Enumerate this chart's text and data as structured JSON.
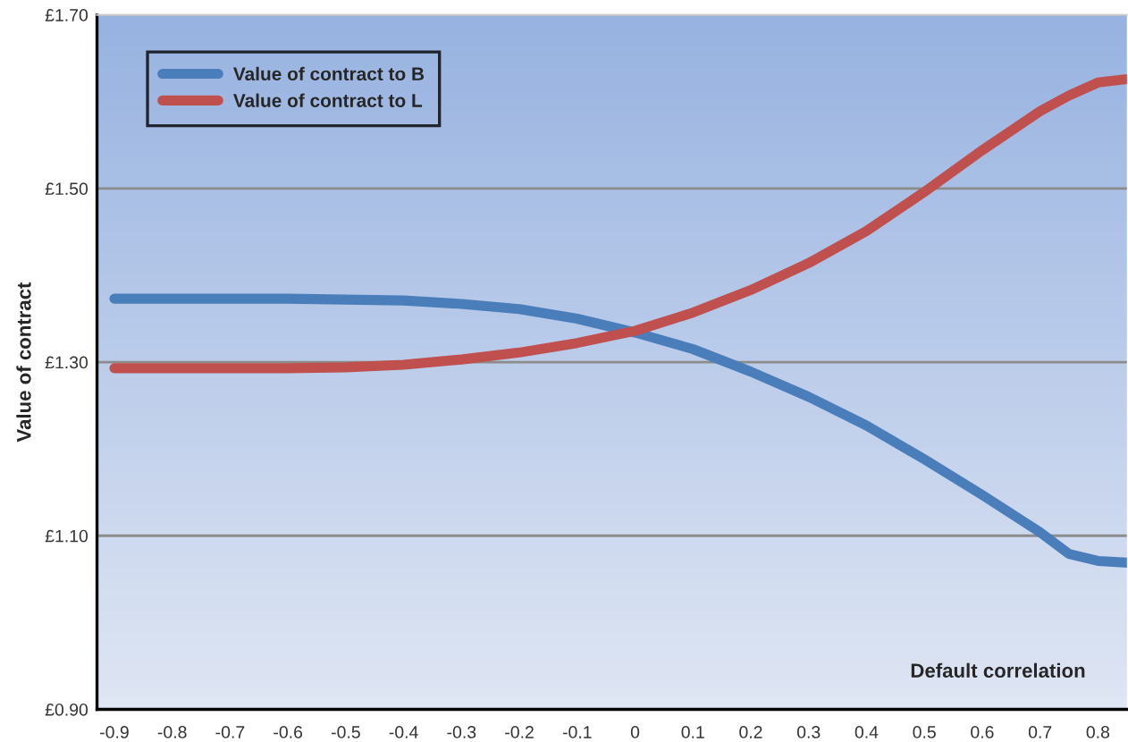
{
  "chart_data": {
    "type": "line",
    "ylabel": "Value of contract",
    "xlabel": "Default correlation",
    "x": [
      -0.9,
      -0.8,
      -0.7,
      -0.6,
      -0.5,
      -0.4,
      -0.3,
      -0.2,
      -0.1,
      0,
      0.1,
      0.2,
      0.3,
      0.4,
      0.5,
      0.6,
      0.7,
      0.75,
      0.8,
      0.85
    ],
    "series": [
      {
        "name": "Value of contract to B",
        "color": "#4a7ebb",
        "values": [
          1.373,
          1.373,
          1.373,
          1.373,
          1.372,
          1.371,
          1.367,
          1.361,
          1.35,
          1.334,
          1.315,
          1.289,
          1.26,
          1.227,
          1.188,
          1.147,
          1.104,
          1.079,
          1.071,
          1.069
        ]
      },
      {
        "name": "Value of contract to L",
        "color": "#c0504d",
        "values": [
          1.293,
          1.293,
          1.293,
          1.293,
          1.294,
          1.297,
          1.303,
          1.311,
          1.322,
          1.336,
          1.357,
          1.383,
          1.414,
          1.451,
          1.496,
          1.544,
          1.589,
          1.607,
          1.622,
          1.626
        ]
      }
    ],
    "xlim": [
      -0.93,
      0.85
    ],
    "xticks": [
      -0.9,
      -0.8,
      -0.7,
      -0.6,
      -0.5,
      -0.4,
      -0.3,
      -0.2,
      -0.1,
      0,
      0.1,
      0.2,
      0.3,
      0.4,
      0.5,
      0.6,
      0.7,
      0.8
    ],
    "ylim": [
      0.9,
      1.7
    ],
    "yticks": [
      {
        "value": 0.9,
        "label": "£0.90"
      },
      {
        "value": 1.1,
        "label": "£1.10"
      },
      {
        "value": 1.3,
        "label": "£1.30"
      },
      {
        "value": 1.5,
        "label": "£1.50"
      },
      {
        "value": 1.7,
        "label": "£1.70"
      }
    ],
    "grid": "y",
    "legend": "top left",
    "marker": "none",
    "line_style": "solid"
  }
}
